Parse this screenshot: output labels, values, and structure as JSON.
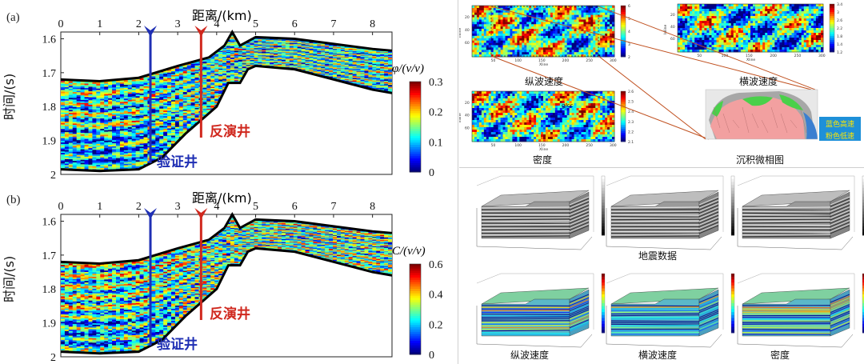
{
  "left": {
    "panel_a": {
      "label": "(a)",
      "x_title": "距离/(km)",
      "x_ticks": [
        "0",
        "1",
        "2",
        "3",
        "4",
        "5",
        "6",
        "7",
        "8"
      ],
      "y_title": "时间/(s)",
      "y_ticks": [
        "1.6",
        "1.7",
        "1.8",
        "1.9",
        "2"
      ],
      "cbar_title": "φ/(v/v)",
      "cbar_ticks": [
        "0.3",
        "0.2",
        "0.1",
        "0"
      ],
      "well_validate": "验证井",
      "well_inverse": "反演井"
    },
    "panel_b": {
      "label": "(b)",
      "x_title": "距离/(km)",
      "x_ticks": [
        "0",
        "1",
        "2",
        "3",
        "4",
        "5",
        "6",
        "7",
        "8"
      ],
      "y_title": "时间/(s)",
      "y_ticks": [
        "1.6",
        "1.7",
        "1.8",
        "1.9",
        "2"
      ],
      "cbar_title": "C/(v/v)",
      "cbar_ticks": [
        "0.6",
        "0.4",
        "0.2",
        "0"
      ],
      "well_validate": "验证井",
      "well_inverse": "反演井"
    }
  },
  "right_top": {
    "vp_caption": "纵波速度",
    "vs_caption": "横波速度",
    "density_caption": "密度",
    "facies_caption": "沉积微相图",
    "legend_blue": "蓝色高速",
    "legend_pink": "粉色低速",
    "density_unit": "g/cc",
    "vp_cbar_ticks": [
      "6",
      "5",
      "4",
      "3",
      "2"
    ],
    "vs_cbar_ticks": [
      "3.4",
      "3",
      "2.6",
      "2.2",
      "1.8",
      "1.4",
      "1.2"
    ],
    "rho_cbar_ticks": [
      "2.6",
      "2.5",
      "2.4",
      "2.3",
      "2.2",
      "2.1"
    ],
    "map_x_ticks": [
      "50",
      "100",
      "150",
      "200",
      "250",
      "300"
    ],
    "map_y_ticks": [
      "20",
      "40",
      "60"
    ],
    "map_x_label": "Xline",
    "map_y_label": "Inline"
  },
  "right_bottom": {
    "seismic_caption": "地震数据",
    "vp_caption": "纵波速度",
    "vs_caption": "横波速度",
    "density_caption": "密度"
  },
  "colors": {
    "blue_well": "#1f2fb4",
    "red_well": "#d0281e",
    "connector": "#c0501f",
    "legend_box": "#1e90d8"
  }
}
